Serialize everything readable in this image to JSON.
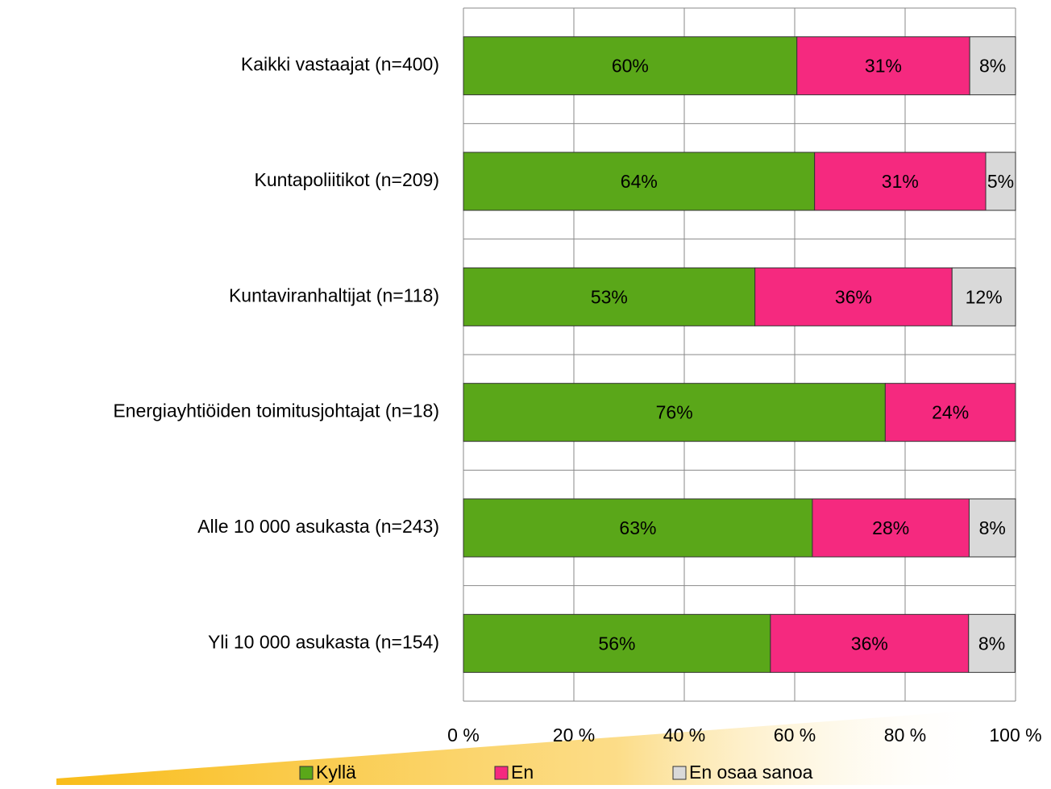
{
  "chart_data": {
    "type": "stacked-horizontal-bar",
    "categories": [
      "Kaikki vastaajat (n=400)",
      "Kuntapoliitikot (n=209)",
      "Kuntaviranhaltijat (n=118)",
      "Energiayhtiöiden toimitusjohtajat (n=18)",
      "Alle 10 000 asukasta (n=243)",
      "Yli 10 000 asukasta (n=154)"
    ],
    "series": [
      {
        "name": "Kyllä",
        "color": "#5aa719",
        "values": [
          60.4,
          63.6,
          52.8,
          76.4,
          63.2,
          55.6
        ],
        "value_labels": [
          "60%",
          "64%",
          "53%",
          "76%",
          "63%",
          "56%"
        ]
      },
      {
        "name": "En",
        "color": "#f5297f",
        "values": [
          31.3,
          31.0,
          35.7,
          23.6,
          28.4,
          35.9
        ],
        "value_labels": [
          "31%",
          "31%",
          "36%",
          "24%",
          "28%",
          "36%"
        ]
      },
      {
        "name": "En osaa sanoa",
        "color": "#d9d9d9",
        "values": [
          8.3,
          5.4,
          11.5,
          null,
          8.4,
          8.4
        ],
        "value_labels": [
          "8%",
          "5%",
          "12%",
          null,
          "8%",
          "8%"
        ]
      }
    ],
    "xlim": [
      0,
      100
    ],
    "xticks": [
      {
        "value": 0,
        "label": "0 %"
      },
      {
        "value": 20,
        "label": "20 %"
      },
      {
        "value": 40,
        "label": "40 %"
      },
      {
        "value": 60,
        "label": "60 %"
      },
      {
        "value": 80,
        "label": "80 %"
      },
      {
        "value": 100,
        "label": "100 %"
      }
    ],
    "grid": true,
    "legend": "bottom"
  }
}
